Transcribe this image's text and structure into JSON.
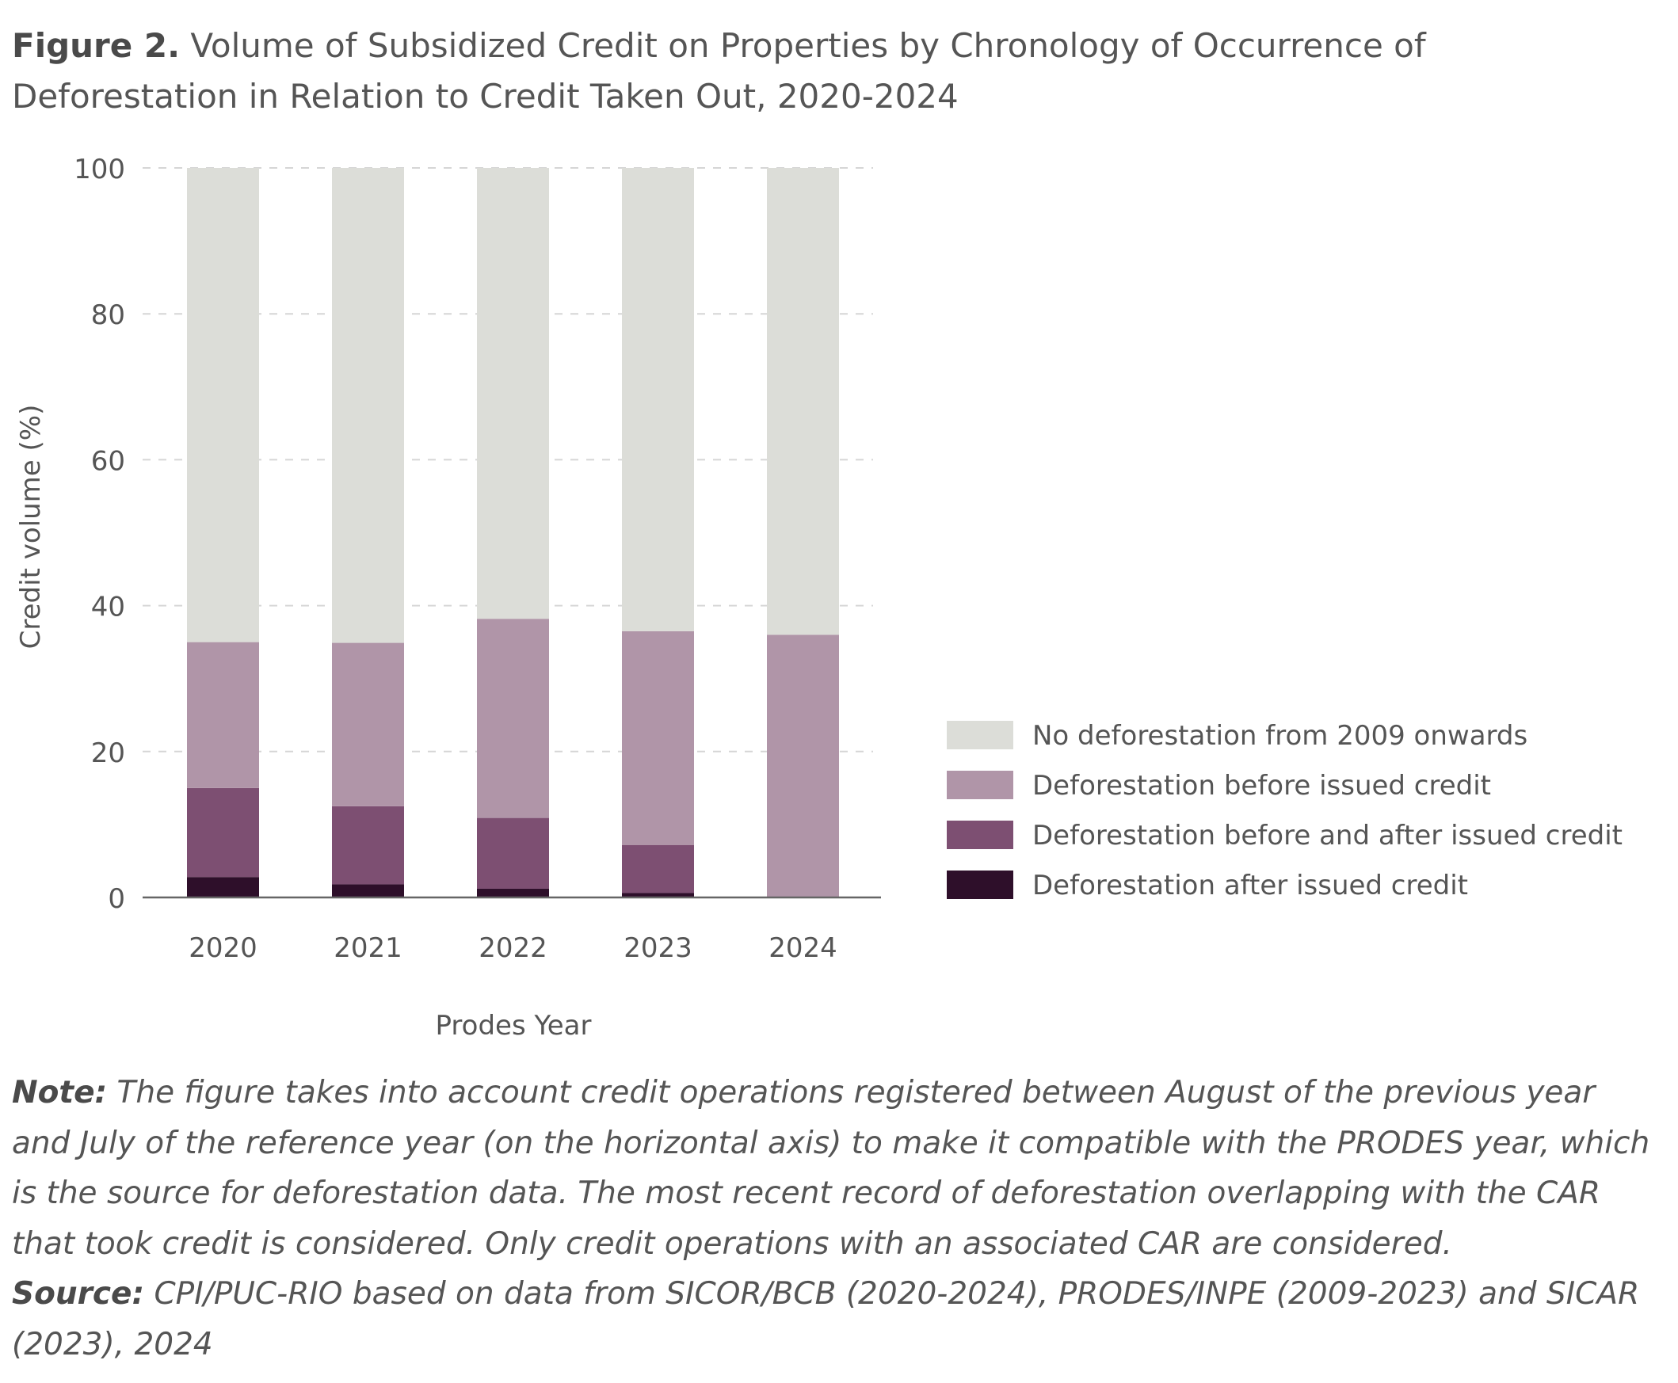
{
  "figure": {
    "label": "Figure 2.",
    "title": "Volume of Subsidized Credit on Properties by Chronology of Occurrence of Deforestation in Relation to Credit Taken Out, 2020-2024"
  },
  "chart_data": {
    "type": "bar",
    "stacked": true,
    "categories": [
      "2020",
      "2021",
      "2022",
      "2023",
      "2024"
    ],
    "series": [
      {
        "name": "Deforestation after issued credit",
        "color": "#2e0f2a",
        "values": [
          2.8,
          1.8,
          1.2,
          0.6,
          0
        ]
      },
      {
        "name": "Deforestation before and after issued credit",
        "color": "#7d4f72",
        "values": [
          12.2,
          10.7,
          9.7,
          6.6,
          0
        ]
      },
      {
        "name": "Deforestation before issued credit",
        "color": "#b095a8",
        "values": [
          20.0,
          22.4,
          27.3,
          29.3,
          36.0
        ]
      },
      {
        "name": "No deforestation from 2009 onwards",
        "color": "#dcddd8",
        "values": [
          65.0,
          65.1,
          61.8,
          63.5,
          64.0
        ]
      }
    ],
    "legend_order": [
      "No deforestation from 2009 onwards",
      "Deforestation before issued credit",
      "Deforestation before and after issued credit",
      "Deforestation after issued credit"
    ],
    "xlabel": "Prodes Year",
    "ylabel": "Credit volume (%)",
    "ylim": [
      0,
      100
    ],
    "yticks": [
      "0",
      "20",
      "40",
      "60",
      "80",
      "100"
    ],
    "grid": "horizontal dashed",
    "legend_position": "right"
  },
  "footer": {
    "note_label": "Note:",
    "note_text": "The figure takes into account credit operations registered between August of the previous year and July of the reference year (on the horizontal axis) to make it compatible with the PRODES year, which is the source for deforestation data. The most recent record of deforestation overlapping with the CAR that took credit is considered. Only credit operations with an associated CAR are considered.",
    "source_label": "Source:",
    "source_text": "CPI/PUC-RIO based on data from SICOR/BCB (2020-2024), PRODES/INPE (2009-2023) and SICAR (2023), 2024"
  }
}
